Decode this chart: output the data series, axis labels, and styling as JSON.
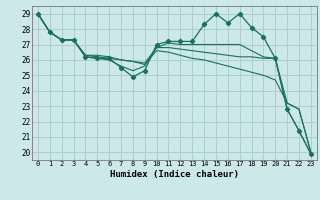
{
  "xlabel": "Humidex (Indice chaleur)",
  "bg_color": "#cce8e8",
  "grid_color": "#aacece",
  "line_color": "#1a7060",
  "xlim": [
    -0.5,
    23.5
  ],
  "ylim": [
    19.5,
    29.5
  ],
  "xticks": [
    0,
    1,
    2,
    3,
    4,
    5,
    6,
    7,
    8,
    9,
    10,
    11,
    12,
    13,
    14,
    15,
    16,
    17,
    18,
    19,
    20,
    21,
    22,
    23
  ],
  "yticks": [
    20,
    21,
    22,
    23,
    24,
    25,
    26,
    27,
    28,
    29
  ],
  "series": [
    {
      "y": [
        29.0,
        27.8,
        27.3,
        27.3,
        26.2,
        26.1,
        26.1,
        25.5,
        24.9,
        25.3,
        27.0,
        27.2,
        27.2,
        27.2,
        28.3,
        29.0,
        28.4,
        29.0,
        28.1,
        27.5,
        26.1,
        22.8,
        21.4,
        19.9
      ],
      "has_markers": true
    },
    {
      "y": [
        29.0,
        27.8,
        27.3,
        27.3,
        26.2,
        26.1,
        26.0,
        25.6,
        25.3,
        25.6,
        26.8,
        27.1,
        27.0,
        27.0,
        27.0,
        27.0,
        27.0,
        27.0,
        26.6,
        26.2,
        26.1,
        22.8,
        21.4,
        19.9
      ],
      "has_markers": false
    },
    {
      "y": [
        29.0,
        27.8,
        27.3,
        27.3,
        26.3,
        26.3,
        26.2,
        26.0,
        25.9,
        25.8,
        26.8,
        26.8,
        26.7,
        26.6,
        26.5,
        26.4,
        26.3,
        26.2,
        26.2,
        26.1,
        26.1,
        23.2,
        22.8,
        20.0
      ],
      "has_markers": false
    },
    {
      "y": [
        29.0,
        27.8,
        27.3,
        27.3,
        26.3,
        26.2,
        26.1,
        26.0,
        25.9,
        25.7,
        26.6,
        26.5,
        26.3,
        26.1,
        26.0,
        25.8,
        25.6,
        25.4,
        25.2,
        25.0,
        24.7,
        23.2,
        22.8,
        20.0
      ],
      "has_markers": false
    }
  ]
}
